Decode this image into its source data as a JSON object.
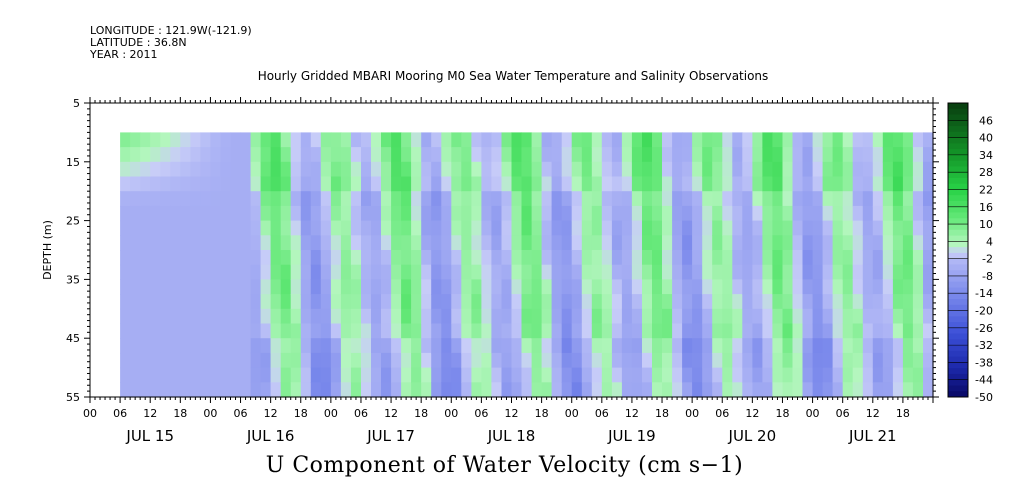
{
  "header": {
    "longitude": "LONGITUDE : 121.9W(-121.9)",
    "latitude": "LATITUDE : 36.8N",
    "year": "YEAR : 2011"
  },
  "chart_data": {
    "type": "heatmap",
    "title": "Hourly Gridded MBARI Mooring M0 Sea Water Temperature and Salinity Observations",
    "xlabel": "U Component of Water Velocity (cm s−1)",
    "ylabel": "DEPTH (m)",
    "ylim": [
      55,
      5
    ],
    "y_ticks": [
      5,
      15,
      25,
      35,
      45,
      55
    ],
    "x_hour_ticks": [
      "00",
      "06",
      "12",
      "18",
      "00",
      "06",
      "12",
      "18",
      "00",
      "06",
      "12",
      "18",
      "00",
      "06",
      "12",
      "18",
      "00",
      "06",
      "12",
      "18",
      "00",
      "06",
      "12",
      "18",
      "00",
      "06",
      "12",
      "18"
    ],
    "x_day_labels": [
      "JUL 15",
      "JUL 16",
      "JUL 17",
      "JUL 18",
      "JUL 19",
      "JUL 20",
      "JUL 21"
    ],
    "data_extent": {
      "start": "JUL 15 06",
      "end": "JUL 21 23",
      "depth_top": 10,
      "depth_bottom": 55
    },
    "colorbar": {
      "levels": [
        "46",
        "40",
        "34",
        "28",
        "22",
        "16",
        "10",
        "4",
        "-2",
        "-8",
        "-14",
        "-20",
        "-26",
        "-32",
        "-38",
        "-44",
        "-50"
      ],
      "min": -50,
      "max": 52
    },
    "colors": {
      "strong_negative": "#0a0a6a",
      "weak_negative": "#a8b0f0",
      "near_zero": "#c6ccf6",
      "weak_positive": "#a6f4b0",
      "strong_positive": "#0a4a10"
    }
  }
}
